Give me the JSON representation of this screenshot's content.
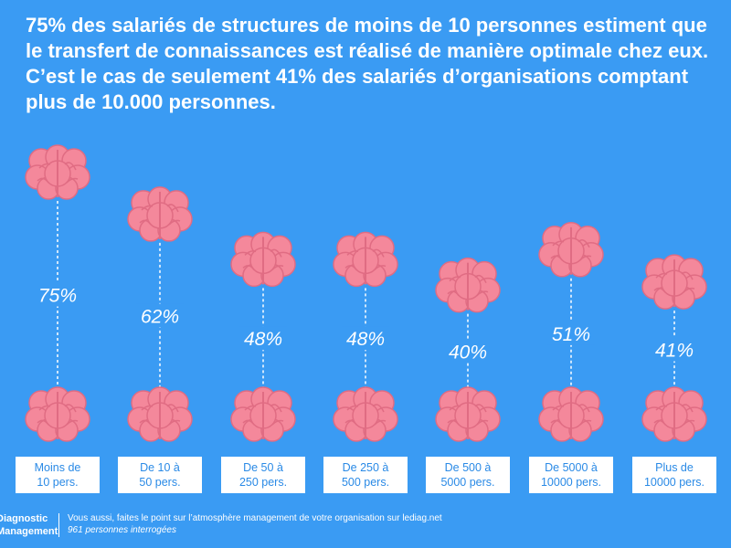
{
  "headline": "75% des salariés de structures de moins de 10 personnes estiment que le transfert de connaissances est réalisé de manière optimale chez eux. C’est le cas de seulement 41% des salariés d’organisations comptant plus de 10.000 personnes.",
  "colors": {
    "background": "#3a9bf3",
    "brain": "#f4889b",
    "brain_outline": "#e06c83",
    "label_text": "#2a8ae6"
  },
  "icons": {
    "brain": "brain-icon"
  },
  "chart_data": {
    "type": "bar",
    "title": "",
    "xlabel": "",
    "ylabel": "",
    "ylim": [
      0,
      100
    ],
    "categories": [
      [
        "Moins de",
        "10 pers."
      ],
      [
        "De 10 à",
        "50 pers."
      ],
      [
        "De 50 à",
        "250 pers."
      ],
      [
        "De 250 à",
        "500 pers."
      ],
      [
        "De 500 à",
        "5000 pers."
      ],
      [
        "De 5000 à",
        "10000 pers."
      ],
      [
        "Plus de",
        "10000 pers."
      ]
    ],
    "values": [
      75,
      62,
      48,
      48,
      40,
      51,
      41
    ],
    "value_labels": [
      "75%",
      "62%",
      "48%",
      "48%",
      "40%",
      "51%",
      "41%"
    ]
  },
  "footer": {
    "brand_line1": "Diagnostic",
    "brand_line2": "Management",
    "text": "Vous aussi, faites le point sur l’atmosphère management de votre organisation sur lediag.net",
    "note": "961 personnes interrogées"
  }
}
